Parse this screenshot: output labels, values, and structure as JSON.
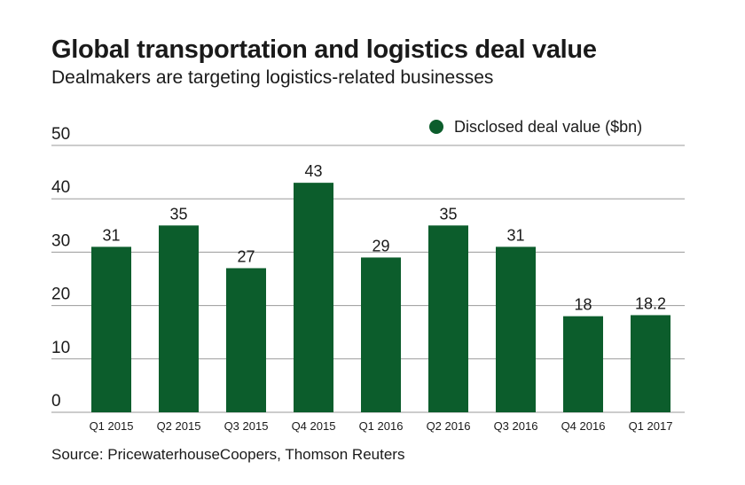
{
  "header": {
    "title": "Global transportation and logistics deal value",
    "subtitle": "Dealmakers are targeting logistics-related businesses"
  },
  "footer": {
    "source": "Source: PricewaterhouseCoopers, Thomson Reuters"
  },
  "colors": {
    "bar": "#0c5d2c",
    "grid": "#9a9a9a",
    "text": "#1a1a1a"
  },
  "chart_data": {
    "type": "bar",
    "title": "Global transportation and logistics deal value",
    "subtitle": "Dealmakers are targeting logistics-related businesses",
    "categories": [
      "Q1 2015",
      "Q2 2015",
      "Q3 2015",
      "Q4 2015",
      "Q1 2016",
      "Q2 2016",
      "Q3 2016",
      "Q4 2016",
      "Q1 2017"
    ],
    "series": [
      {
        "name": "Disclosed deal value ($bn)",
        "values": [
          31,
          35,
          27,
          43,
          29,
          35,
          31,
          18,
          18.2
        ],
        "labels": [
          "31",
          "35",
          "27",
          "43",
          "29",
          "35",
          "31",
          "18",
          "18.2"
        ]
      }
    ],
    "yticks": [
      0,
      10,
      20,
      30,
      40,
      50
    ],
    "ylim": [
      0,
      50
    ],
    "xlabel": "",
    "ylabel": "",
    "grid": true,
    "legend": "top-right"
  }
}
